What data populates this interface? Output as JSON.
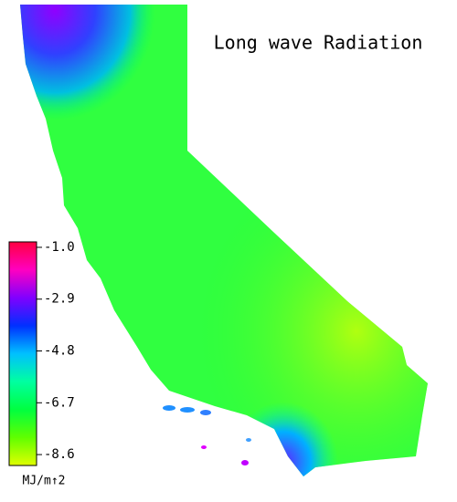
{
  "title": "Long wave Radiation",
  "colorbar": {
    "unit": "MJ/m↑2",
    "lim": [
      -0.8,
      -9.0
    ],
    "ticks": [
      {
        "value": -1,
        "label": "-1.0"
      },
      -2.9,
      -4.8,
      -6.7,
      -8.6
    ],
    "colors": [
      "#ff0040",
      "#ff00c0",
      "#8000ff",
      "#0030ff",
      "#00c0ff",
      "#00ffa0",
      "#00ff40",
      "#60ff00",
      "#e0ff00"
    ]
  }
}
